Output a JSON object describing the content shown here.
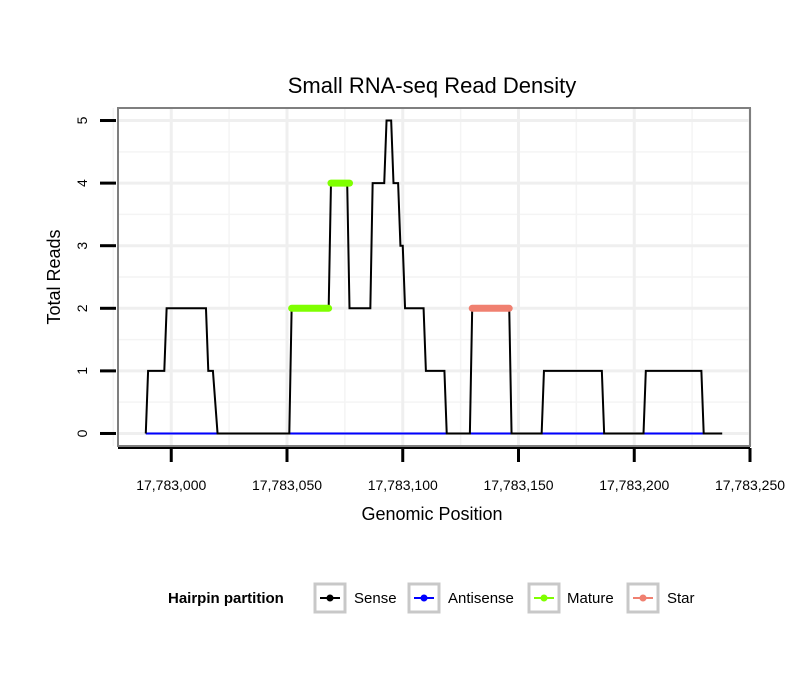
{
  "chart_data": {
    "type": "line",
    "title": "Small RNA-seq Read Density",
    "xlabel": "Genomic Position",
    "ylabel": "Total Reads",
    "xlim": [
      17782977,
      17783250
    ],
    "ylim": [
      -0.2,
      5.2
    ],
    "x_ticks": [
      17783000,
      17783050,
      17783100,
      17783150,
      17783200,
      17783250
    ],
    "x_tick_labels": [
      "17,783,000",
      "17,783,050",
      "17,783,100",
      "17,783,150",
      "17,783,200",
      "17,783,250"
    ],
    "y_ticks": [
      0,
      1,
      2,
      3,
      4,
      5
    ],
    "y_tick_labels": [
      "0",
      "1",
      "2",
      "3",
      "4",
      "5"
    ],
    "grid": true,
    "legend": {
      "title": "Hairpin partition",
      "position": "bottom",
      "entries": [
        {
          "name": "Sense",
          "color": "#000000"
        },
        {
          "name": "Antisense",
          "color": "#0000ff"
        },
        {
          "name": "Mature",
          "color": "#7fff00"
        },
        {
          "name": "Star",
          "color": "#f08070"
        }
      ]
    },
    "series": [
      {
        "name": "Sense",
        "color": "#000000",
        "points": [
          [
            17782989,
            0
          ],
          [
            17782990,
            1
          ],
          [
            17782997,
            1
          ],
          [
            17782998,
            2
          ],
          [
            17783015,
            2
          ],
          [
            17783016,
            1
          ],
          [
            17783018,
            1
          ],
          [
            17783020,
            0
          ],
          [
            17783051,
            0
          ],
          [
            17783052,
            2
          ],
          [
            17783068,
            2
          ],
          [
            17783069,
            4
          ],
          [
            17783070,
            4
          ],
          [
            17783071,
            4
          ],
          [
            17783076,
            4
          ],
          [
            17783077,
            2
          ],
          [
            17783086,
            2
          ],
          [
            17783087,
            4
          ],
          [
            17783092,
            4
          ],
          [
            17783093,
            5
          ],
          [
            17783095,
            5
          ],
          [
            17783096,
            4
          ],
          [
            17783098,
            4
          ],
          [
            17783099,
            3
          ],
          [
            17783100,
            3
          ],
          [
            17783101,
            2
          ],
          [
            17783104,
            2
          ],
          [
            17783109,
            2
          ],
          [
            17783110,
            1
          ],
          [
            17783118,
            1
          ],
          [
            17783119,
            0
          ],
          [
            17783129,
            0
          ],
          [
            17783130,
            2
          ],
          [
            17783146,
            2
          ],
          [
            17783147,
            0
          ],
          [
            17783160,
            0
          ],
          [
            17783161,
            1
          ],
          [
            17783186,
            1
          ],
          [
            17783187,
            0
          ],
          [
            17783204,
            0
          ],
          [
            17783205,
            1
          ],
          [
            17783229,
            1
          ],
          [
            17783230,
            0
          ],
          [
            17783238,
            0
          ]
        ]
      },
      {
        "name": "Antisense",
        "color": "#0000ff",
        "points": [
          [
            17782989,
            0
          ],
          [
            17783230,
            0
          ]
        ]
      },
      {
        "name": "Mature",
        "color": "#7fff00",
        "segments": [
          {
            "x": [
              17783052,
              17783068
            ],
            "y": 2
          },
          {
            "x": [
              17783069,
              17783077
            ],
            "y": 4
          }
        ]
      },
      {
        "name": "Star",
        "color": "#f08070",
        "segments": [
          {
            "x": [
              17783130,
              17783146
            ],
            "y": 2
          }
        ]
      }
    ]
  }
}
